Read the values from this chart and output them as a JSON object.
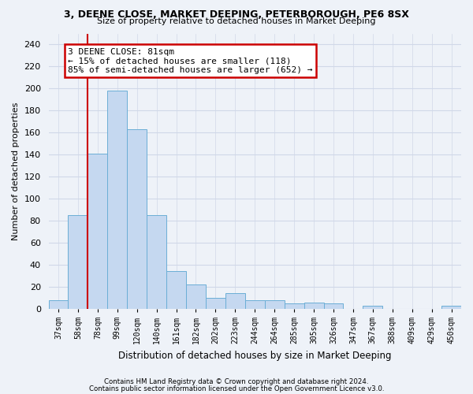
{
  "title1": "3, DEENE CLOSE, MARKET DEEPING, PETERBOROUGH, PE6 8SX",
  "title2": "Size of property relative to detached houses in Market Deeping",
  "xlabel": "Distribution of detached houses by size in Market Deeping",
  "ylabel": "Number of detached properties",
  "categories": [
    "37sqm",
    "58sqm",
    "78sqm",
    "99sqm",
    "120sqm",
    "140sqm",
    "161sqm",
    "182sqm",
    "202sqm",
    "223sqm",
    "244sqm",
    "264sqm",
    "285sqm",
    "305sqm",
    "326sqm",
    "347sqm",
    "367sqm",
    "388sqm",
    "409sqm",
    "429sqm",
    "450sqm"
  ],
  "values": [
    8,
    85,
    141,
    198,
    163,
    85,
    34,
    22,
    10,
    14,
    8,
    8,
    5,
    6,
    5,
    0,
    3,
    0,
    0,
    0,
    3
  ],
  "bar_color": "#c5d8f0",
  "bar_edge_color": "#6baed6",
  "grid_color": "#d0d8e8",
  "vline_color": "#cc0000",
  "annotation_text": "3 DEENE CLOSE: 81sqm\n← 15% of detached houses are smaller (118)\n85% of semi-detached houses are larger (652) →",
  "annotation_box_color": "#ffffff",
  "annotation_border_color": "#cc0000",
  "footer1": "Contains HM Land Registry data © Crown copyright and database right 2024.",
  "footer2": "Contains public sector information licensed under the Open Government Licence v3.0.",
  "ylim": [
    0,
    250
  ],
  "yticks": [
    0,
    20,
    40,
    60,
    80,
    100,
    120,
    140,
    160,
    180,
    200,
    220,
    240
  ],
  "bg_color": "#eef2f8"
}
